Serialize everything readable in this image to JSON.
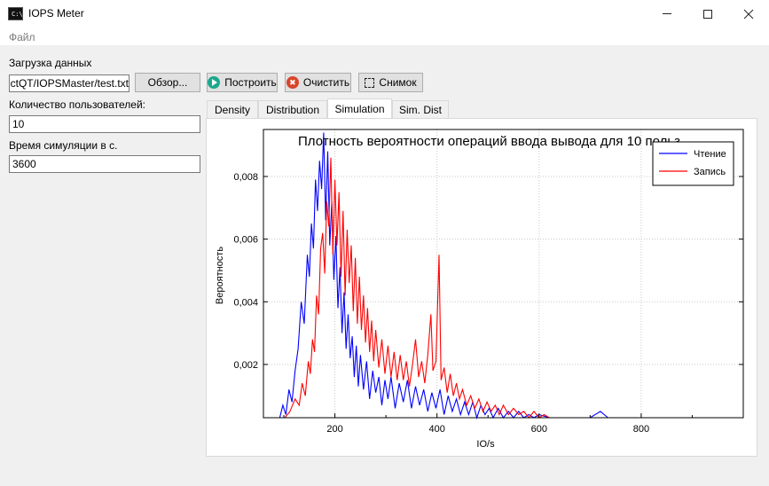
{
  "window": {
    "title": "IOPS Meter",
    "icon": "terminal-icon",
    "icon_text": "C:\\"
  },
  "menu": {
    "file": "Файл"
  },
  "form": {
    "load_label": "Загрузка данных",
    "file_path": "ctQT/IOPSMaster/test.txt",
    "browse_button": "Обзор...",
    "build_button": "Построить",
    "clear_button": "Очистить",
    "snapshot_button": "Снимок",
    "users_label": "Количество пользователей:",
    "users_value": "10",
    "sim_time_label": "Время симуляции в с.",
    "sim_time_value": "3600"
  },
  "tabs": [
    {
      "label": "Density",
      "active": false
    },
    {
      "label": "Distribution",
      "active": false
    },
    {
      "label": "Simulation",
      "active": true
    },
    {
      "label": "Sim. Dist",
      "active": false
    }
  ],
  "colors": {
    "read": "#0000ff",
    "write": "#ff0000",
    "grid": "#c8c8c8"
  },
  "chart_data": {
    "type": "line",
    "title": "Плотность вероятности операций ввода вывода для 10 польз",
    "xlabel": "IO/s",
    "ylabel": "Вероятность",
    "xlim": [
      60,
      1000
    ],
    "ylim": [
      0.0003,
      0.0095
    ],
    "xticks": [
      200,
      400,
      600,
      800
    ],
    "yticks": [
      0.002,
      0.004,
      0.006,
      0.008
    ],
    "xtick_labels": [
      "200",
      "400",
      "600",
      "800"
    ],
    "ytick_labels": [
      "0,002",
      "0,004",
      "0,006",
      "0,008"
    ],
    "grid": true,
    "legend_position": "top-right",
    "series": [
      {
        "name": "Чтение",
        "color": "#0000ff",
        "points": [
          [
            92,
            0.0003
          ],
          [
            98,
            0.0007
          ],
          [
            104,
            0.0004
          ],
          [
            110,
            0.0012
          ],
          [
            116,
            0.0008
          ],
          [
            122,
            0.0018
          ],
          [
            128,
            0.0025
          ],
          [
            134,
            0.004
          ],
          [
            140,
            0.0033
          ],
          [
            146,
            0.0055
          ],
          [
            150,
            0.0048
          ],
          [
            154,
            0.0065
          ],
          [
            158,
            0.0057
          ],
          [
            162,
            0.0079
          ],
          [
            166,
            0.0069
          ],
          [
            170,
            0.0085
          ],
          [
            174,
            0.0076
          ],
          [
            178,
            0.0094
          ],
          [
            182,
            0.0066
          ],
          [
            186,
            0.0088
          ],
          [
            190,
            0.0058
          ],
          [
            194,
            0.0072
          ],
          [
            198,
            0.0047
          ],
          [
            202,
            0.0061
          ],
          [
            206,
            0.0038
          ],
          [
            210,
            0.0051
          ],
          [
            214,
            0.003
          ],
          [
            218,
            0.0043
          ],
          [
            222,
            0.0025
          ],
          [
            226,
            0.0036
          ],
          [
            230,
            0.0022
          ],
          [
            234,
            0.0029
          ],
          [
            238,
            0.0016
          ],
          [
            242,
            0.0026
          ],
          [
            246,
            0.0013
          ],
          [
            250,
            0.0023
          ],
          [
            256,
            0.0012
          ],
          [
            262,
            0.0021
          ],
          [
            268,
            0.0009
          ],
          [
            274,
            0.0018
          ],
          [
            280,
            0.0011
          ],
          [
            286,
            0.0016
          ],
          [
            292,
            0.0007
          ],
          [
            298,
            0.0015
          ],
          [
            304,
            0.0009
          ],
          [
            310,
            0.0016
          ],
          [
            318,
            0.0006
          ],
          [
            326,
            0.0014
          ],
          [
            334,
            0.0008
          ],
          [
            342,
            0.0015
          ],
          [
            350,
            0.0006
          ],
          [
            358,
            0.0013
          ],
          [
            366,
            0.0007
          ],
          [
            374,
            0.0012
          ],
          [
            382,
            0.0005
          ],
          [
            390,
            0.0011
          ],
          [
            398,
            0.0006
          ],
          [
            406,
            0.0012
          ],
          [
            414,
            0.0004
          ],
          [
            422,
            0.001
          ],
          [
            430,
            0.0005
          ],
          [
            438,
            0.0009
          ],
          [
            446,
            0.0004
          ],
          [
            454,
            0.0008
          ],
          [
            462,
            0.0004
          ],
          [
            470,
            0.0008
          ],
          [
            478,
            0.0003
          ],
          [
            486,
            0.0007
          ],
          [
            494,
            0.0004
          ],
          [
            502,
            0.0006
          ],
          [
            510,
            0.0003
          ],
          [
            520,
            0.0006
          ],
          [
            530,
            0.0003
          ],
          [
            540,
            0.0005
          ],
          [
            550,
            0.0003
          ],
          [
            560,
            0.0005
          ],
          [
            570,
            0.0003
          ],
          [
            580,
            0.0004
          ],
          [
            590,
            0.0003
          ],
          [
            600,
            0.0004
          ],
          [
            620,
            0.0003
          ],
          [
            640,
            0.0003
          ],
          [
            700,
            0.0003
          ],
          [
            720,
            0.0005
          ],
          [
            735,
            0.0003
          ]
        ]
      },
      {
        "name": "Запись",
        "color": "#ff0000",
        "points": [
          [
            102,
            0.0003
          ],
          [
            112,
            0.0005
          ],
          [
            122,
            0.0009
          ],
          [
            130,
            0.0007
          ],
          [
            136,
            0.0014
          ],
          [
            142,
            0.001
          ],
          [
            148,
            0.0021
          ],
          [
            152,
            0.0017
          ],
          [
            156,
            0.0028
          ],
          [
            160,
            0.0024
          ],
          [
            164,
            0.0042
          ],
          [
            168,
            0.0036
          ],
          [
            172,
            0.0057
          ],
          [
            176,
            0.0062
          ],
          [
            180,
            0.0049
          ],
          [
            184,
            0.0072
          ],
          [
            188,
            0.0064
          ],
          [
            192,
            0.0086
          ],
          [
            196,
            0.0055
          ],
          [
            200,
            0.0079
          ],
          [
            204,
            0.0058
          ],
          [
            208,
            0.0075
          ],
          [
            212,
            0.0048
          ],
          [
            216,
            0.0069
          ],
          [
            220,
            0.0042
          ],
          [
            224,
            0.0063
          ],
          [
            228,
            0.0046
          ],
          [
            232,
            0.0058
          ],
          [
            236,
            0.0037
          ],
          [
            240,
            0.0054
          ],
          [
            244,
            0.0033
          ],
          [
            248,
            0.0048
          ],
          [
            252,
            0.0031
          ],
          [
            256,
            0.0042
          ],
          [
            260,
            0.0027
          ],
          [
            264,
            0.0038
          ],
          [
            268,
            0.0024
          ],
          [
            272,
            0.0034
          ],
          [
            276,
            0.0021
          ],
          [
            280,
            0.0031
          ],
          [
            286,
            0.0019
          ],
          [
            292,
            0.0028
          ],
          [
            298,
            0.0017
          ],
          [
            304,
            0.0026
          ],
          [
            310,
            0.0016
          ],
          [
            316,
            0.0024
          ],
          [
            322,
            0.0015
          ],
          [
            328,
            0.0023
          ],
          [
            334,
            0.0015
          ],
          [
            340,
            0.0021
          ],
          [
            346,
            0.0013
          ],
          [
            352,
            0.002
          ],
          [
            358,
            0.0028
          ],
          [
            364,
            0.0016
          ],
          [
            370,
            0.0021
          ],
          [
            376,
            0.0014
          ],
          [
            382,
            0.0023
          ],
          [
            388,
            0.0036
          ],
          [
            392,
            0.0018
          ],
          [
            398,
            0.0021
          ],
          [
            404,
            0.0055
          ],
          [
            408,
            0.0015
          ],
          [
            414,
            0.0019
          ],
          [
            420,
            0.0011
          ],
          [
            426,
            0.0017
          ],
          [
            432,
            0.001
          ],
          [
            438,
            0.0014
          ],
          [
            444,
            0.0009
          ],
          [
            450,
            0.0012
          ],
          [
            458,
            0.0007
          ],
          [
            466,
            0.001
          ],
          [
            474,
            0.0006
          ],
          [
            482,
            0.0009
          ],
          [
            490,
            0.0005
          ],
          [
            498,
            0.0008
          ],
          [
            506,
            0.0005
          ],
          [
            514,
            0.0007
          ],
          [
            522,
            0.0004
          ],
          [
            530,
            0.0007
          ],
          [
            540,
            0.0004
          ],
          [
            550,
            0.0006
          ],
          [
            560,
            0.0004
          ],
          [
            570,
            0.0005
          ],
          [
            580,
            0.0003
          ],
          [
            590,
            0.0005
          ],
          [
            600,
            0.0003
          ],
          [
            610,
            0.0004
          ],
          [
            620,
            0.0003
          ],
          [
            650,
            0.0003
          ]
        ]
      }
    ]
  }
}
